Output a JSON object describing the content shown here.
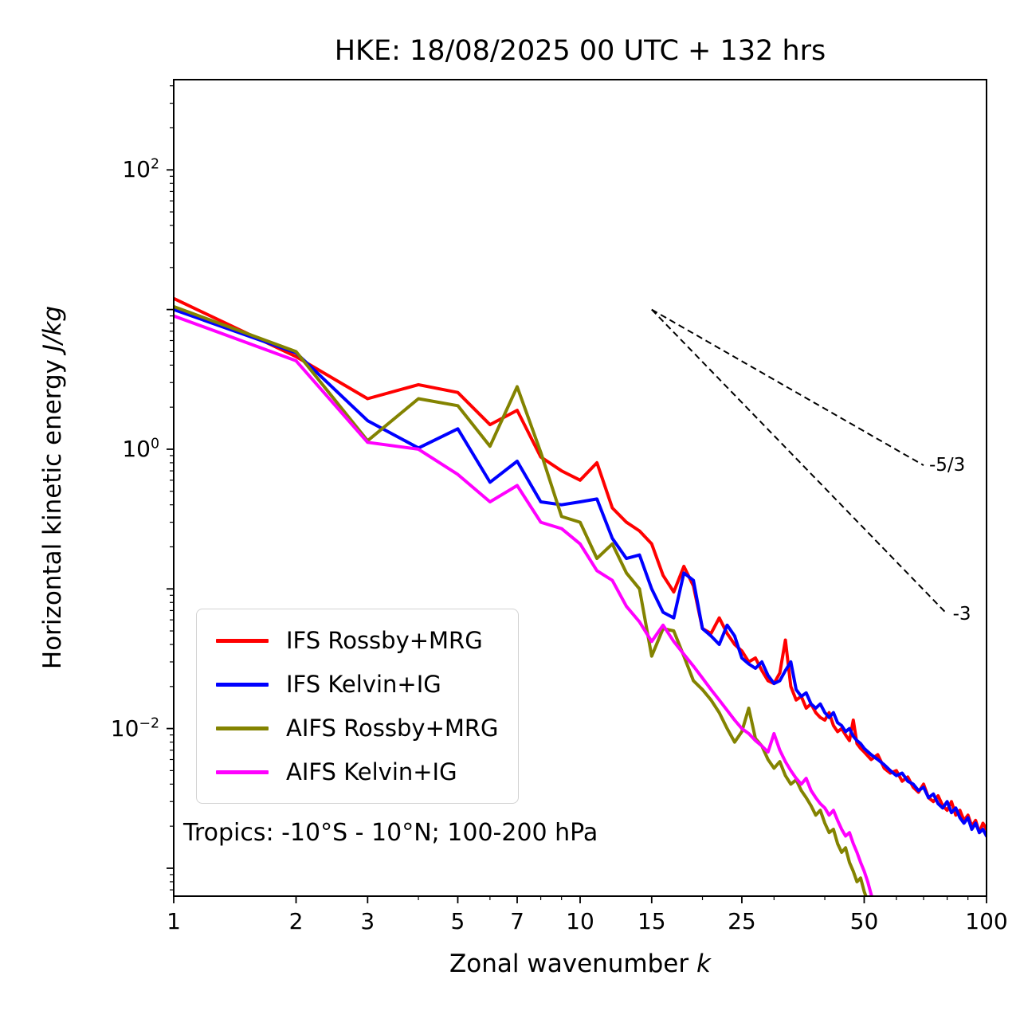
{
  "title": "HKE: 18/08/2025 00 UTC + 132 hrs",
  "annotation": "Tropics: -10°S - 10°N; 100-200 hPa",
  "chart_data": {
    "type": "line",
    "xscale": "log",
    "yscale": "log",
    "title": "HKE: 18/08/2025 00 UTC + 132 hrs",
    "xlabel": {
      "text": "Zonal wavenumber ",
      "italic": "k"
    },
    "ylabel": {
      "text": "Horizontal kinetic energy ",
      "italic": "J/kg"
    },
    "xlim": [
      1,
      100
    ],
    "ylim_exponents": [
      -3.2,
      2.646
    ],
    "grid": false,
    "legend_position": "lower left",
    "x_ticks": [
      {
        "v": 1,
        "label": "1"
      },
      {
        "v": 2,
        "label": "2"
      },
      {
        "v": 3,
        "label": "3"
      },
      {
        "v": 5,
        "label": "5"
      },
      {
        "v": 7,
        "label": "7"
      },
      {
        "v": 10,
        "label": "10"
      },
      {
        "v": 15,
        "label": "15"
      },
      {
        "v": 25,
        "label": "25"
      },
      {
        "v": 50,
        "label": "50"
      },
      {
        "v": 100,
        "label": "100"
      }
    ],
    "x_minor_ticks": [
      2,
      3,
      4,
      5,
      6,
      7,
      8,
      9,
      20,
      30,
      40,
      50,
      60,
      70,
      80,
      90
    ],
    "y_tick_exponents_major": [
      2,
      1,
      0,
      -1,
      -2,
      -3
    ],
    "y_tick_exponents_labeled": [
      2,
      0,
      -2
    ],
    "reference_lines": [
      {
        "label": "-5/3",
        "from": [
          15,
          10
        ],
        "to": [
          70,
          0.767
        ]
      },
      {
        "label": "-3",
        "from": [
          15,
          10
        ],
        "to": [
          80,
          0.066
        ]
      }
    ],
    "series": [
      {
        "name": "IFS Rossby+MRG",
        "color": "#ff0000",
        "points": [
          [
            1,
            12
          ],
          [
            2,
            4.6
          ],
          [
            3,
            2.3
          ],
          [
            4,
            2.9
          ],
          [
            5,
            2.55
          ],
          [
            6,
            1.5
          ],
          [
            7,
            1.9
          ],
          [
            8,
            0.88
          ],
          [
            9,
            0.7
          ],
          [
            10,
            0.6
          ],
          [
            11,
            0.8
          ],
          [
            12,
            0.38
          ],
          [
            13,
            0.3
          ],
          [
            14,
            0.26
          ],
          [
            15,
            0.21
          ],
          [
            16,
            0.125
          ],
          [
            17,
            0.095
          ],
          [
            18,
            0.145
          ],
          [
            19,
            0.105
          ],
          [
            20,
            0.052
          ],
          [
            21,
            0.048
          ],
          [
            22,
            0.062
          ],
          [
            23,
            0.048
          ],
          [
            24,
            0.04
          ],
          [
            25,
            0.036
          ],
          [
            26,
            0.03
          ],
          [
            27,
            0.032
          ],
          [
            28,
            0.026
          ],
          [
            29,
            0.022
          ],
          [
            30,
            0.021
          ],
          [
            31,
            0.025
          ],
          [
            32,
            0.043
          ],
          [
            33,
            0.02
          ],
          [
            34,
            0.016
          ],
          [
            35,
            0.017
          ],
          [
            36,
            0.014
          ],
          [
            37,
            0.015
          ],
          [
            38,
            0.013
          ],
          [
            39,
            0.012
          ],
          [
            40,
            0.0115
          ],
          [
            41,
            0.013
          ],
          [
            42,
            0.0105
          ],
          [
            43,
            0.0095
          ],
          [
            44,
            0.01
          ],
          [
            45,
            0.009
          ],
          [
            46,
            0.0082
          ],
          [
            47,
            0.0115
          ],
          [
            48,
            0.0078
          ],
          [
            49,
            0.0072
          ],
          [
            50,
            0.0068
          ],
          [
            52,
            0.006
          ],
          [
            54,
            0.0065
          ],
          [
            56,
            0.0052
          ],
          [
            58,
            0.0048
          ],
          [
            60,
            0.005
          ],
          [
            62,
            0.0042
          ],
          [
            64,
            0.0045
          ],
          [
            66,
            0.0038
          ],
          [
            68,
            0.0035
          ],
          [
            70,
            0.004
          ],
          [
            72,
            0.0032
          ],
          [
            74,
            0.003
          ],
          [
            76,
            0.0033
          ],
          [
            78,
            0.0028
          ],
          [
            80,
            0.0026
          ],
          [
            82,
            0.003
          ],
          [
            84,
            0.0024
          ],
          [
            86,
            0.0026
          ],
          [
            88,
            0.0022
          ],
          [
            90,
            0.0024
          ],
          [
            92,
            0.002
          ],
          [
            94,
            0.0022
          ],
          [
            96,
            0.0018
          ],
          [
            98,
            0.0021
          ],
          [
            100,
            0.0019
          ]
        ]
      },
      {
        "name": "IFS Kelvin+IG",
        "color": "#0000ff",
        "points": [
          [
            1,
            10
          ],
          [
            2,
            4.9
          ],
          [
            3,
            1.6
          ],
          [
            4,
            1.02
          ],
          [
            5,
            1.4
          ],
          [
            6,
            0.58
          ],
          [
            7,
            0.82
          ],
          [
            8,
            0.42
          ],
          [
            9,
            0.4
          ],
          [
            10,
            0.42
          ],
          [
            11,
            0.44
          ],
          [
            12,
            0.23
          ],
          [
            13,
            0.165
          ],
          [
            14,
            0.175
          ],
          [
            15,
            0.1
          ],
          [
            16,
            0.068
          ],
          [
            17,
            0.062
          ],
          [
            18,
            0.13
          ],
          [
            19,
            0.115
          ],
          [
            20,
            0.052
          ],
          [
            21,
            0.046
          ],
          [
            22,
            0.04
          ],
          [
            23,
            0.055
          ],
          [
            24,
            0.046
          ],
          [
            25,
            0.032
          ],
          [
            26,
            0.029
          ],
          [
            27,
            0.027
          ],
          [
            28,
            0.03
          ],
          [
            29,
            0.024
          ],
          [
            30,
            0.021
          ],
          [
            31,
            0.022
          ],
          [
            32,
            0.026
          ],
          [
            33,
            0.03
          ],
          [
            34,
            0.019
          ],
          [
            35,
            0.017
          ],
          [
            36,
            0.018
          ],
          [
            37,
            0.015
          ],
          [
            38,
            0.014
          ],
          [
            39,
            0.015
          ],
          [
            40,
            0.013
          ],
          [
            41,
            0.012
          ],
          [
            42,
            0.013
          ],
          [
            43,
            0.011
          ],
          [
            44,
            0.0105
          ],
          [
            45,
            0.0095
          ],
          [
            46,
            0.01
          ],
          [
            47,
            0.0088
          ],
          [
            48,
            0.0082
          ],
          [
            49,
            0.0078
          ],
          [
            50,
            0.0072
          ],
          [
            52,
            0.0065
          ],
          [
            54,
            0.006
          ],
          [
            56,
            0.0055
          ],
          [
            58,
            0.005
          ],
          [
            60,
            0.0046
          ],
          [
            62,
            0.0048
          ],
          [
            64,
            0.0042
          ],
          [
            66,
            0.004
          ],
          [
            68,
            0.0036
          ],
          [
            70,
            0.0038
          ],
          [
            72,
            0.0032
          ],
          [
            74,
            0.0034
          ],
          [
            76,
            0.0029
          ],
          [
            78,
            0.0027
          ],
          [
            80,
            0.003
          ],
          [
            82,
            0.0025
          ],
          [
            84,
            0.0027
          ],
          [
            86,
            0.0023
          ],
          [
            88,
            0.0021
          ],
          [
            90,
            0.0023
          ],
          [
            92,
            0.0019
          ],
          [
            94,
            0.0021
          ],
          [
            96,
            0.0018
          ],
          [
            98,
            0.0019
          ],
          [
            100,
            0.0017
          ]
        ]
      },
      {
        "name": "AIFS Rossby+MRG",
        "color": "#838300",
        "points": [
          [
            1,
            10.5
          ],
          [
            2,
            5
          ],
          [
            3,
            1.15
          ],
          [
            4,
            2.3
          ],
          [
            5,
            2.05
          ],
          [
            6,
            1.05
          ],
          [
            7,
            2.8
          ],
          [
            8,
            0.95
          ],
          [
            9,
            0.33
          ],
          [
            10,
            0.3
          ],
          [
            11,
            0.165
          ],
          [
            12,
            0.21
          ],
          [
            13,
            0.13
          ],
          [
            14,
            0.1
          ],
          [
            15,
            0.033
          ],
          [
            16,
            0.052
          ],
          [
            17,
            0.05
          ],
          [
            18,
            0.033
          ],
          [
            19,
            0.022
          ],
          [
            20,
            0.019
          ],
          [
            21,
            0.016
          ],
          [
            22,
            0.013
          ],
          [
            23,
            0.01
          ],
          [
            24,
            0.008
          ],
          [
            25,
            0.0095
          ],
          [
            26,
            0.014
          ],
          [
            27,
            0.0085
          ],
          [
            28,
            0.0075
          ],
          [
            29,
            0.006
          ],
          [
            30,
            0.0052
          ],
          [
            31,
            0.0058
          ],
          [
            32,
            0.0046
          ],
          [
            33,
            0.004
          ],
          [
            34,
            0.0043
          ],
          [
            35,
            0.0036
          ],
          [
            36,
            0.0032
          ],
          [
            37,
            0.0028
          ],
          [
            38,
            0.0024
          ],
          [
            39,
            0.0026
          ],
          [
            40,
            0.0021
          ],
          [
            41,
            0.0018
          ],
          [
            42,
            0.0019
          ],
          [
            43,
            0.0015
          ],
          [
            44,
            0.0013
          ],
          [
            45,
            0.0014
          ],
          [
            46,
            0.0011
          ],
          [
            47,
            0.00095
          ],
          [
            48,
            0.0008
          ],
          [
            49,
            0.00085
          ],
          [
            50,
            0.00068
          ],
          [
            51,
            0.00058
          ],
          [
            52,
            0.0005
          ]
        ]
      },
      {
        "name": "AIFS Kelvin+IG",
        "color": "#ff00ff",
        "points": [
          [
            1,
            9
          ],
          [
            2,
            4.3
          ],
          [
            3,
            1.12
          ],
          [
            4,
            1
          ],
          [
            5,
            0.66
          ],
          [
            6,
            0.42
          ],
          [
            7,
            0.55
          ],
          [
            8,
            0.3
          ],
          [
            9,
            0.27
          ],
          [
            10,
            0.21
          ],
          [
            11,
            0.135
          ],
          [
            12,
            0.115
          ],
          [
            13,
            0.075
          ],
          [
            14,
            0.058
          ],
          [
            15,
            0.042
          ],
          [
            16,
            0.055
          ],
          [
            17,
            0.042
          ],
          [
            18,
            0.034
          ],
          [
            19,
            0.028
          ],
          [
            20,
            0.023
          ],
          [
            21,
            0.019
          ],
          [
            22,
            0.016
          ],
          [
            23,
            0.0135
          ],
          [
            24,
            0.0115
          ],
          [
            25,
            0.01
          ],
          [
            26,
            0.0092
          ],
          [
            27,
            0.0082
          ],
          [
            28,
            0.0075
          ],
          [
            29,
            0.0068
          ],
          [
            30,
            0.0092
          ],
          [
            31,
            0.007
          ],
          [
            32,
            0.0058
          ],
          [
            33,
            0.005
          ],
          [
            34,
            0.0044
          ],
          [
            35,
            0.004
          ],
          [
            36,
            0.0044
          ],
          [
            37,
            0.0036
          ],
          [
            38,
            0.0032
          ],
          [
            39,
            0.0029
          ],
          [
            40,
            0.0027
          ],
          [
            41,
            0.0024
          ],
          [
            42,
            0.0026
          ],
          [
            43,
            0.0022
          ],
          [
            44,
            0.0019
          ],
          [
            45,
            0.0017
          ],
          [
            46,
            0.0018
          ],
          [
            47,
            0.0015
          ],
          [
            48,
            0.0013
          ],
          [
            49,
            0.0011
          ],
          [
            50,
            0.00095
          ],
          [
            51,
            0.0008
          ],
          [
            52,
            0.00065
          ],
          [
            53,
            0.00055
          ]
        ]
      }
    ]
  }
}
